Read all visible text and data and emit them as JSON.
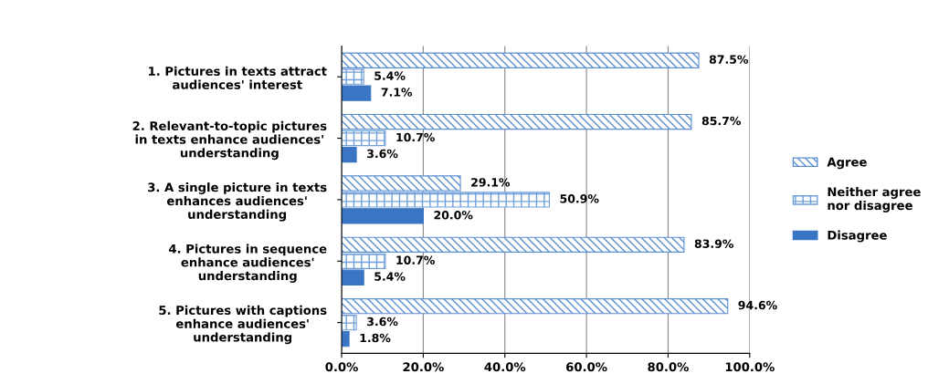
{
  "chart_data": {
    "type": "bar",
    "orientation": "horizontal",
    "categories": [
      "1. Pictures in texts attract\naudiences' interest",
      "2. Relevant-to-topic pictures\nin texts enhance audiences'\nunderstanding",
      "3. A single picture in texts\nenhances audiences'\nunderstanding",
      "4. Pictures in sequence\nenhance audiences'\nunderstanding",
      "5. Pictures with captions\nenhance audiences'\nunderstanding"
    ],
    "series": [
      {
        "name": "Agree",
        "color": "#5b8fd0",
        "values": [
          87.5,
          85.7,
          29.1,
          83.9,
          94.6
        ],
        "value_labels": [
          "87.5%",
          "85.7%",
          "29.1%",
          "83.9%",
          "94.6%"
        ]
      },
      {
        "name": "Neither agree\nnor disagree",
        "color": "#6f9fd8",
        "values": [
          5.4,
          10.7,
          50.9,
          10.7,
          3.6
        ],
        "value_labels": [
          "5.4%",
          "10.7%",
          "50.9%",
          "10.7%",
          "3.6%"
        ]
      },
      {
        "name": "Disagree",
        "color": "#3a75c4",
        "values": [
          7.1,
          3.6,
          20.0,
          5.4,
          1.8
        ],
        "value_labels": [
          "7.1%",
          "3.6%",
          "20.0%",
          "5.4%",
          "1.8%"
        ]
      }
    ],
    "xlim": [
      0,
      100
    ],
    "xticks": [
      {
        "value": 0,
        "label": "0.0%"
      },
      {
        "value": 20,
        "label": "20.0%"
      },
      {
        "value": 40,
        "label": "40.0%"
      },
      {
        "value": 60,
        "label": "60.0%"
      },
      {
        "value": 80,
        "label": "80.0%"
      },
      {
        "value": 100,
        "label": "100.0%"
      }
    ],
    "grid": "x",
    "legend": "right"
  }
}
